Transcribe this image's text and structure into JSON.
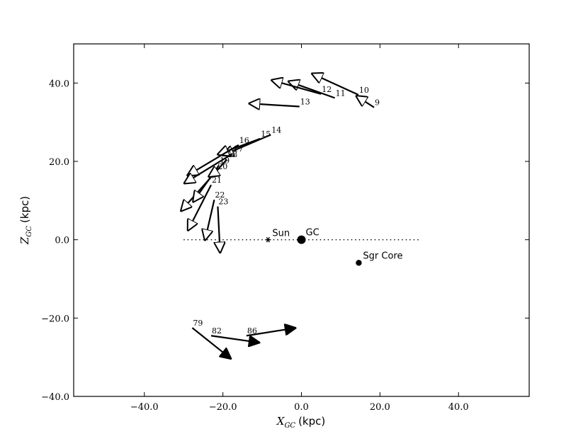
{
  "chart_data": {
    "type": "scatter",
    "title": "",
    "xlabel": {
      "symbol": "X",
      "subscript": "GC",
      "unit": "(kpc)"
    },
    "ylabel": {
      "symbol": "Z",
      "subscript": "GC",
      "unit": "(kpc)"
    },
    "xlim": [
      -58,
      58
    ],
    "ylim": [
      -40,
      50
    ],
    "x_ticks": [
      {
        "value": -40,
        "label": "−40.0"
      },
      {
        "value": -20,
        "label": "−20.0"
      },
      {
        "value": 0,
        "label": "0.0"
      },
      {
        "value": 20,
        "label": "20.0"
      },
      {
        "value": 40,
        "label": "40.0"
      }
    ],
    "y_ticks": [
      {
        "value": -40,
        "label": "−40.0"
      },
      {
        "value": -20,
        "label": "−20.0"
      },
      {
        "value": 0,
        "label": "0.0"
      },
      {
        "value": 20,
        "label": "20.0"
      },
      {
        "value": 40,
        "label": "40.0"
      }
    ],
    "grid": false,
    "reference_line": {
      "y": 0,
      "x_from": -30,
      "x_to": 30,
      "style": "dotted"
    },
    "markers": [
      {
        "label": "Sun",
        "x": -8.5,
        "y": 0,
        "symbol": "asterisk"
      },
      {
        "label": "GC",
        "x": 0,
        "y": 0,
        "symbol": "large-dot"
      },
      {
        "label": "Sgr Core",
        "x": 14.6,
        "y": -5.9,
        "symbol": "dot"
      }
    ],
    "open_arrows": [
      {
        "label": "9",
        "x": 18.5,
        "y": 33.8,
        "x_end": 13.8,
        "y_end": 36.8
      },
      {
        "label": "10",
        "x": 14.5,
        "y": 37.0,
        "x_end": 2.5,
        "y_end": 42.5
      },
      {
        "label": "11",
        "x": 8.5,
        "y": 36.2,
        "x_end": -3.5,
        "y_end": 40.5
      },
      {
        "label": "12",
        "x": 5.0,
        "y": 37.2,
        "x_end": -7.8,
        "y_end": 40.8
      },
      {
        "label": "13",
        "x": -0.5,
        "y": 34.0,
        "x_end": -13.5,
        "y_end": 34.8
      },
      {
        "label": "14",
        "x": -7.8,
        "y": 26.8,
        "x_end": -20.2,
        "y_end": 21.5
      },
      {
        "label": "15",
        "x": -10.5,
        "y": 25.8,
        "x_end": -21.5,
        "y_end": 21.7
      },
      {
        "label": "16",
        "x": -16.0,
        "y": 24.2,
        "x_end": -29.2,
        "y_end": 16.3
      },
      {
        "label": "17",
        "x": -17.5,
        "y": 22.0,
        "x_end": -30.0,
        "y_end": 14.3
      },
      {
        "label": "18",
        "x": -19.0,
        "y": 20.5,
        "x_end": -30.8,
        "y_end": 7.2
      },
      {
        "label": "19",
        "x": -21.0,
        "y": 19.0,
        "x_end": -27.7,
        "y_end": 9.5
      },
      {
        "label": "20",
        "x": -21.5,
        "y": 17.5,
        "x_end": -23.8,
        "y_end": 16.0
      },
      {
        "label": "21",
        "x": -23.0,
        "y": 14.0,
        "x_end": -29.0,
        "y_end": 2.2
      },
      {
        "label": "22",
        "x": -22.2,
        "y": 10.2,
        "x_end": -24.6,
        "y_end": -0.3
      },
      {
        "label": "23",
        "x": -21.3,
        "y": 8.5,
        "x_end": -20.7,
        "y_end": -3.5
      }
    ],
    "filled_arrows": [
      {
        "label": "79",
        "x": -27.8,
        "y": -22.5,
        "x_end": -17.8,
        "y_end": -30.5
      },
      {
        "label": "82",
        "x": -23.0,
        "y": -24.5,
        "x_end": -10.5,
        "y_end": -26.3
      },
      {
        "label": "86",
        "x": -14.0,
        "y": -24.5,
        "x_end": -1.3,
        "y_end": -22.5
      }
    ]
  }
}
